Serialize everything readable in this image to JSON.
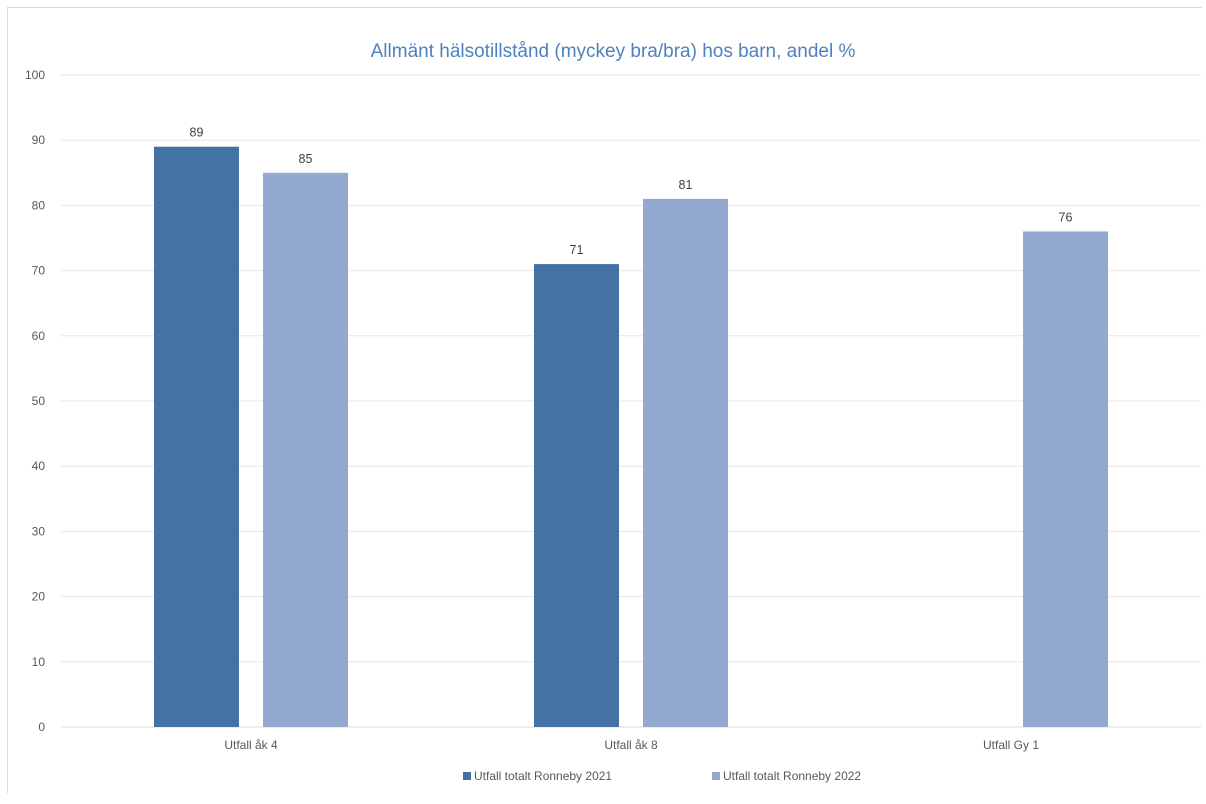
{
  "chart_data": {
    "type": "bar",
    "title": "Allmänt hälsotillstånd (myckey bra/bra) hos barn, andel %",
    "categories": [
      "Utfall åk 4",
      "Utfall åk 8",
      "Utfall Gy 1"
    ],
    "series": [
      {
        "name": "Utfall totalt Ronneby 2021",
        "color": "#4472a4",
        "values": [
          89,
          71,
          null
        ]
      },
      {
        "name": "Utfall totalt Ronneby 2022",
        "color": "#94a9cf",
        "values": [
          85,
          81,
          76
        ]
      }
    ],
    "ylim": [
      0,
      100
    ],
    "yticks": [
      0,
      10,
      20,
      30,
      40,
      50,
      60,
      70,
      80,
      90,
      100
    ],
    "grid": true,
    "gridColor": "#e6e6e6",
    "legend": "bottom",
    "xlabel": "",
    "ylabel": ""
  }
}
